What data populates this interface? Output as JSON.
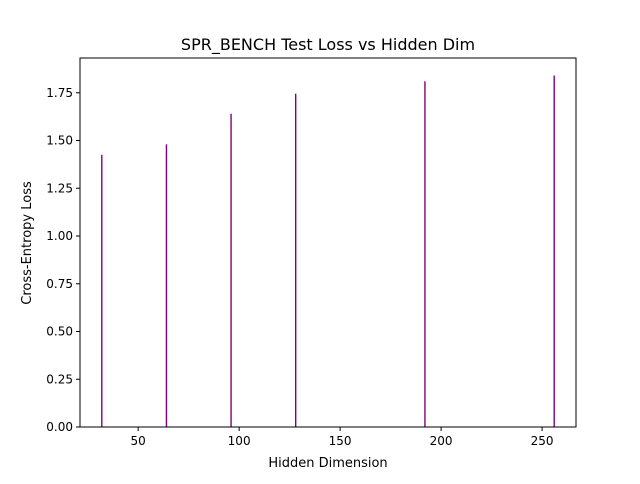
{
  "chart_data": {
    "type": "bar",
    "title": "SPR_BENCH Test Loss vs Hidden Dim",
    "xlabel": "Hidden Dimension",
    "ylabel": "Cross-Entropy Loss",
    "x": [
      32,
      64,
      96,
      128,
      192,
      256
    ],
    "values": [
      1.425,
      1.48,
      1.64,
      1.745,
      1.81,
      1.84
    ],
    "xlim": [
      21.2,
      266.8
    ],
    "ylim": [
      0,
      1.932
    ],
    "xticks": [
      50,
      100,
      150,
      200,
      250
    ],
    "xtick_labels": [
      "50",
      "100",
      "150",
      "200",
      "250"
    ],
    "yticks": [
      0,
      0.25,
      0.5,
      0.75,
      1.0,
      1.25,
      1.5,
      1.75
    ],
    "ytick_labels": [
      "0.00",
      "0.25",
      "0.50",
      "0.75",
      "1.00",
      "1.25",
      "1.50",
      "1.75"
    ],
    "bar_color": "#800080",
    "grid": false,
    "legend": "none"
  }
}
